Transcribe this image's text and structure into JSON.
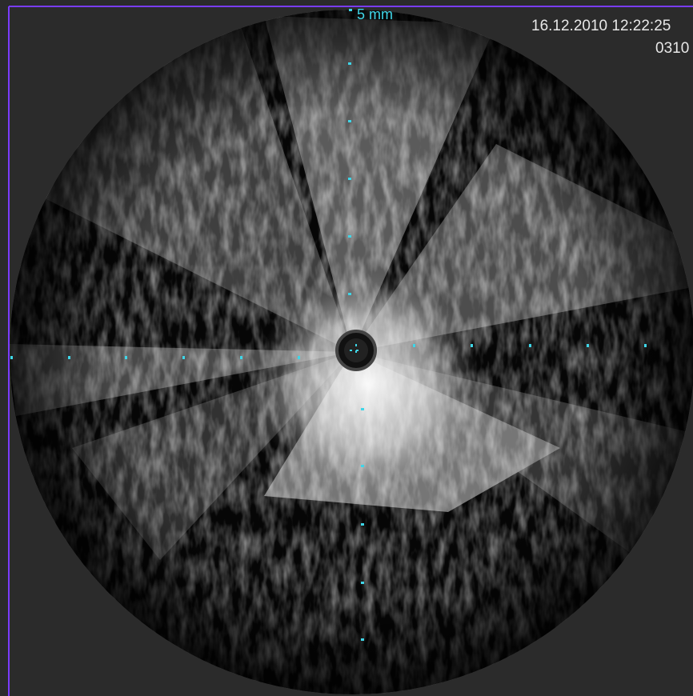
{
  "scale_label": "5 mm",
  "timestamp": "16.12.2010 12:22:25",
  "frame_number": "0310"
}
